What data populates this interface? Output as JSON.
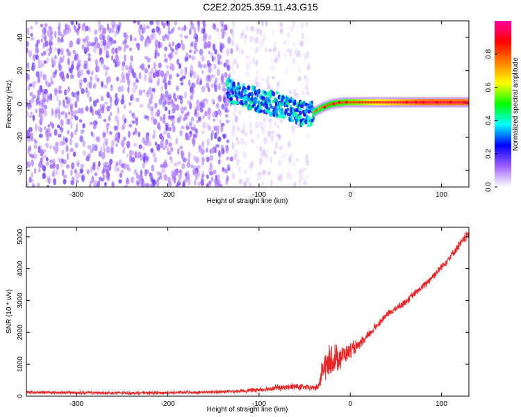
{
  "chart_data": [
    {
      "type": "heatmap",
      "title": "C2E2.2025.359.11.43.G15",
      "xlabel": "Height of straight line (km)",
      "ylabel": "Frequency (Hz)",
      "xlim": [
        -355,
        130
      ],
      "ylim": [
        -50,
        50
      ],
      "xticks": [
        -300,
        -200,
        -100,
        0,
        100
      ],
      "yticks": [
        -40,
        -20,
        0,
        20,
        40
      ],
      "xtick_labels": [
        "-300",
        "-200",
        "-100",
        "0",
        "100"
      ],
      "ytick_labels": [
        "-40",
        "-20",
        "0",
        "20",
        "40"
      ],
      "colorbar": {
        "label": "Normalized spectral amplitude",
        "range": [
          0,
          1
        ],
        "ticks": [
          0,
          0.2,
          0.4,
          0.6,
          0.8
        ],
        "tick_labels": [
          "0.0",
          "0.2",
          "0.4",
          "0.6",
          "0.8"
        ],
        "colormap": [
          "#ffffff",
          "#a060ff",
          "#0000ff",
          "#00ffff",
          "#00ff00",
          "#ffff00",
          "#ff8000",
          "#ff0000",
          "#ff00a0"
        ]
      },
      "features": [
        {
          "region": "noise",
          "x_range": [
            -355,
            -130
          ],
          "y_range": [
            -50,
            50
          ],
          "amplitude": 0.12
        },
        {
          "region": "fading-noise",
          "x_range": [
            -130,
            -45
          ],
          "y_range": [
            -50,
            50
          ],
          "amplitude": 0.06
        },
        {
          "region": "signal-track",
          "points": [
            [
              -135,
              8
            ],
            [
              -120,
              5
            ],
            [
              -100,
              2
            ],
            [
              -80,
              0
            ],
            [
              -60,
              -4
            ],
            [
              -48,
              -7
            ],
            [
              -40,
              -5
            ],
            [
              -30,
              -2
            ],
            [
              -20,
              0
            ],
            [
              -5,
              1
            ],
            [
              10,
              1
            ],
            [
              50,
              1
            ],
            [
              130,
              1
            ]
          ],
          "amplitude_range": [
            0.2,
            0.95
          ]
        }
      ]
    },
    {
      "type": "line",
      "title": "",
      "xlabel": "Height of straight line (km)",
      "ylabel": "SNR (10 * v/v)",
      "xlim": [
        -355,
        130
      ],
      "ylim": [
        0,
        5300
      ],
      "xticks": [
        -300,
        -200,
        -100,
        0,
        100
      ],
      "yticks": [
        0,
        1000,
        2000,
        3000,
        4000,
        5000
      ],
      "xtick_labels": [
        "-300",
        "-200",
        "-100",
        "0",
        "100"
      ],
      "ytick_labels": [
        "0",
        "1000",
        "2000",
        "3000",
        "4000",
        "5000"
      ],
      "series": [
        {
          "name": "SNR",
          "color": "#ee2222",
          "x": [
            -355,
            -300,
            -250,
            -200,
            -150,
            -120,
            -100,
            -80,
            -60,
            -45,
            -35,
            -30,
            -25,
            -20,
            -15,
            -10,
            -5,
            0,
            10,
            20,
            30,
            40,
            60,
            80,
            100,
            110,
            120,
            130
          ],
          "y": [
            120,
            110,
            100,
            105,
            130,
            160,
            200,
            260,
            300,
            260,
            280,
            900,
            1000,
            1100,
            1200,
            1250,
            1350,
            1400,
            1600,
            1900,
            2250,
            2550,
            2950,
            3450,
            4050,
            4400,
            4750,
            5100
          ],
          "noise_amplitude": [
            80,
            80,
            80,
            80,
            80,
            90,
            120,
            150,
            170,
            150,
            150,
            650,
            700,
            750,
            700,
            600,
            500,
            420,
            250,
            200,
            180,
            170,
            170,
            180,
            200,
            220,
            250,
            250
          ]
        }
      ]
    }
  ]
}
